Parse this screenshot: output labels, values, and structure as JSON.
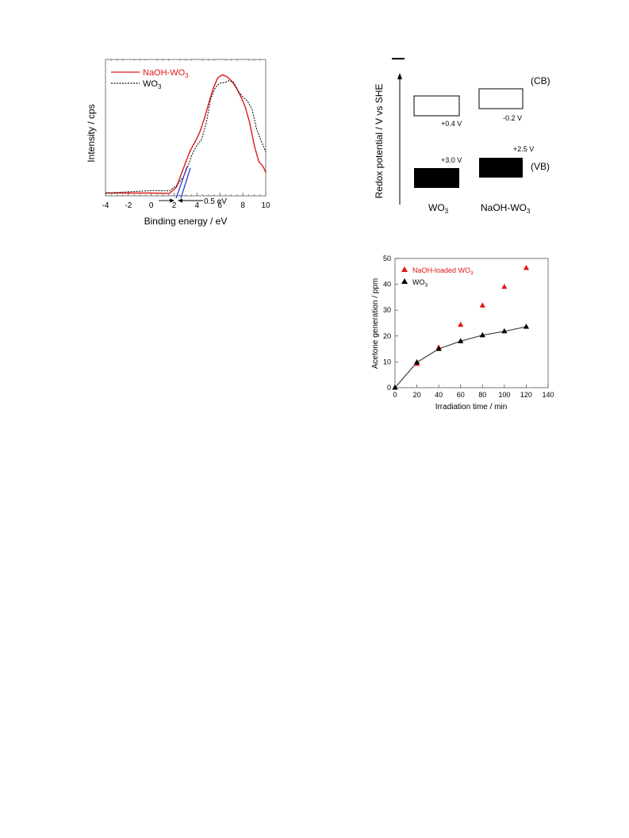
{
  "chart_data": [
    {
      "type": "line",
      "xlabel": "Binding energy / eV",
      "ylabel": "Intensity / cps",
      "xlim": [
        -4,
        10
      ],
      "xticks": [
        "-4",
        "-2",
        "0",
        "2",
        "4",
        "6",
        "8",
        "10"
      ],
      "legend_position": "top-left",
      "annotation": "0.5 eV",
      "colors": {
        "naoh": "#e01818",
        "wo3": "#111111",
        "tangent": "#3040c8"
      },
      "series": [
        {
          "name_main": "NaOH-WO",
          "name_sub": "3",
          "x": [
            -4,
            0,
            1.6,
            2.2,
            2.6,
            3.0,
            3.4,
            3.8,
            4.2,
            4.6,
            5.0,
            5.4,
            5.8,
            6.2,
            6.6,
            7.0,
            7.4,
            7.8,
            8.2,
            8.6,
            9.0,
            9.4,
            9.8,
            10
          ],
          "y": [
            0.01,
            0.01,
            0.02,
            0.06,
            0.15,
            0.25,
            0.36,
            0.44,
            0.52,
            0.62,
            0.74,
            0.86,
            0.96,
            1.0,
            0.99,
            0.95,
            0.88,
            0.8,
            0.72,
            0.6,
            0.42,
            0.28,
            0.22,
            0.18
          ]
        },
        {
          "name_main": "WO",
          "name_sub": "3",
          "x": [
            -4,
            0,
            1.6,
            2.2,
            2.8,
            3.2,
            3.6,
            4.0,
            4.4,
            4.8,
            5.2,
            5.6,
            6.0,
            6.4,
            6.8,
            7.2,
            7.6,
            8.0,
            8.4,
            8.8,
            9.2,
            9.6,
            10
          ],
          "y": [
            0.01,
            0.03,
            0.03,
            0.06,
            0.13,
            0.23,
            0.35,
            0.42,
            0.46,
            0.58,
            0.78,
            0.88,
            0.93,
            0.94,
            0.95,
            0.92,
            0.84,
            0.8,
            0.78,
            0.72,
            0.55,
            0.44,
            0.35
          ]
        }
      ]
    },
    {
      "type": "diagram",
      "ylabel": "Redox potential  / V vs SHE",
      "top_mark": "−",
      "cb_label": "(CB)",
      "vb_label": "(VB)",
      "materials": [
        {
          "name_main": "WO",
          "name_sub": "3",
          "cb": "+0.4 V",
          "vb": "+3.0 V"
        },
        {
          "name_main": "NaOH-WO",
          "name_sub": "3",
          "cb": "-0.2 V",
          "vb": "+2.5 V"
        }
      ]
    },
    {
      "type": "scatter",
      "xlabel": "Irradiation time / min",
      "ylabel": "Acetone generation / ppm",
      "xlim": [
        0,
        140
      ],
      "ylim": [
        0,
        50
      ],
      "xticks": [
        0,
        20,
        40,
        60,
        80,
        100,
        120,
        140
      ],
      "yticks": [
        0,
        10,
        20,
        30,
        40,
        50
      ],
      "grid": false,
      "legend_position": "top-left",
      "series": [
        {
          "name_main": "NaOH-loaded WO",
          "name_sub": "3",
          "color": "#e01818",
          "x": [
            0,
            20,
            40,
            60,
            80,
            100,
            120
          ],
          "y": [
            0,
            9.2,
            15.5,
            24.3,
            31.8,
            39.0,
            46.3
          ]
        },
        {
          "name_main": "WO",
          "name_sub": "3",
          "color": "#000000",
          "x": [
            0,
            20,
            40,
            60,
            80,
            100,
            120
          ],
          "y": [
            0,
            9.8,
            15.0,
            18.0,
            20.3,
            21.8,
            23.6
          ]
        }
      ]
    }
  ]
}
